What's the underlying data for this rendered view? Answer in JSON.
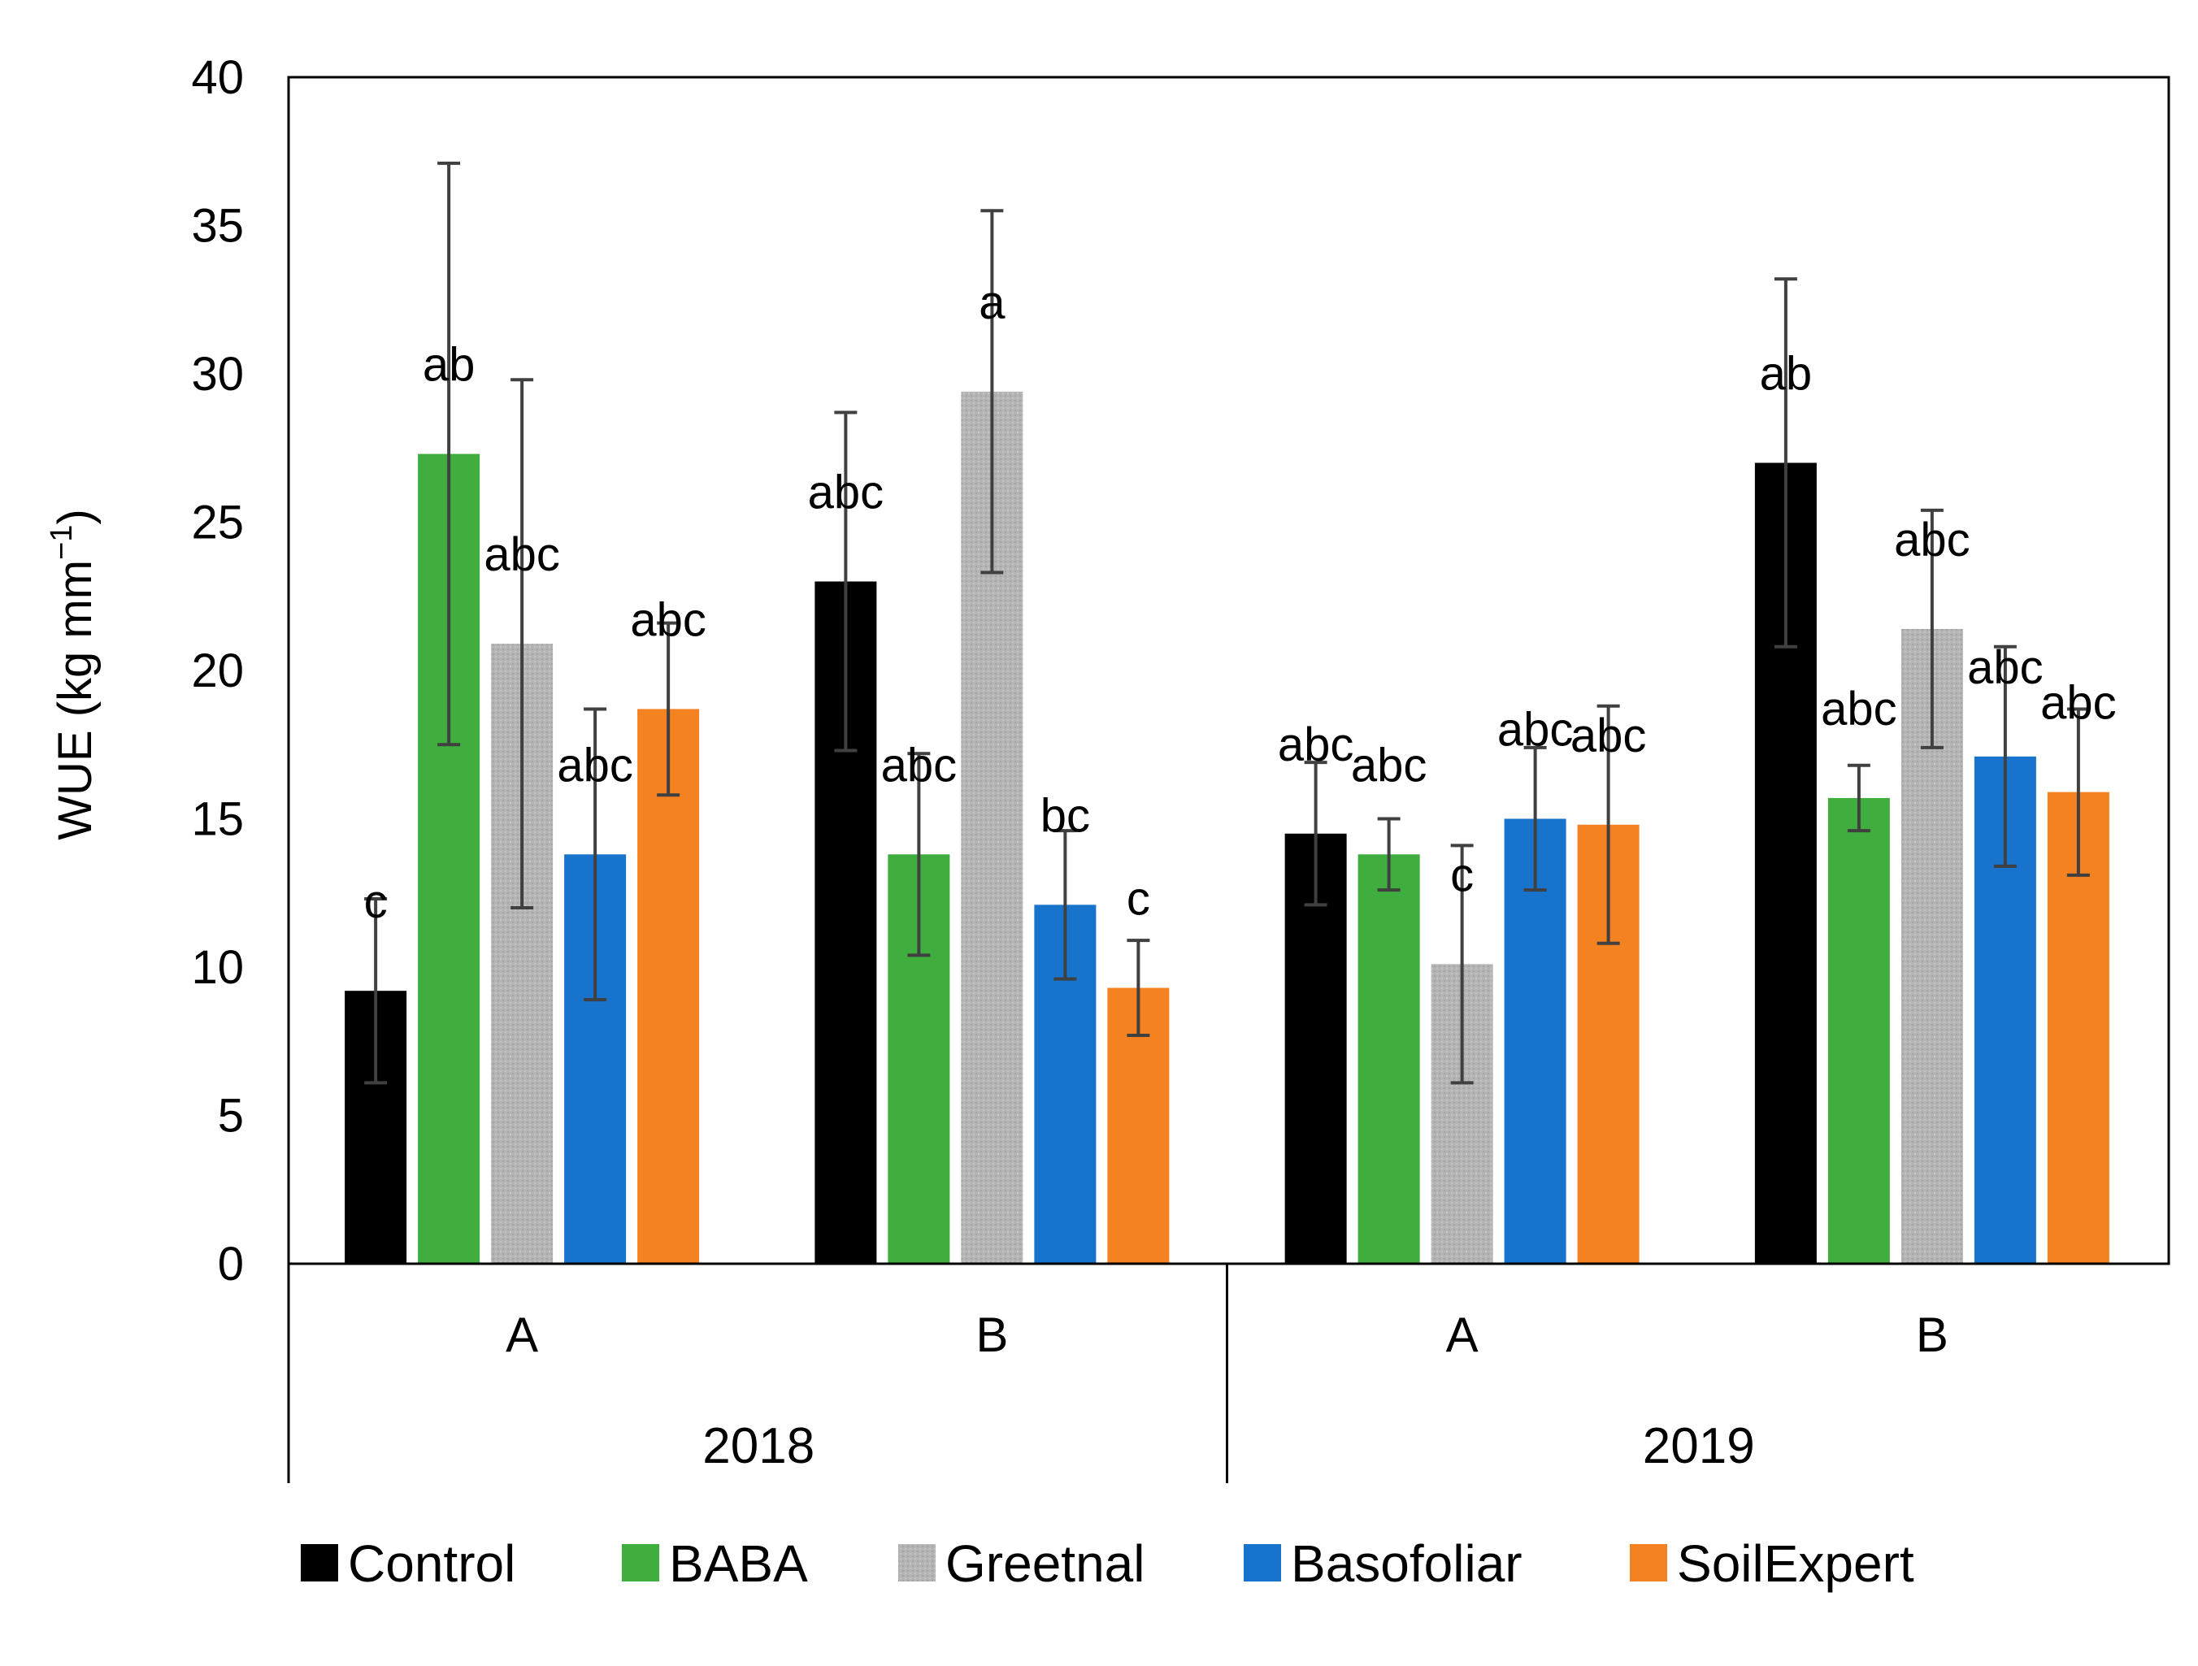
{
  "chart_data": {
    "type": "bar",
    "xlabel": "",
    "ylabel_main": "WUE (kg mm",
    "ylabel_sup": "−1",
    "ylabel_close": ")",
    "ylim": [
      0,
      40
    ],
    "yticks": [
      0,
      5,
      10,
      15,
      20,
      25,
      30,
      35,
      40
    ],
    "groups": [
      {
        "label": "2018",
        "categories": [
          "A",
          "B"
        ]
      },
      {
        "label": "2019",
        "categories": [
          "A",
          "B"
        ]
      }
    ],
    "categories": [
      "A",
      "B",
      "A",
      "B"
    ],
    "series": [
      {
        "name": "Control",
        "color": "#000000",
        "values": [
          9.2,
          23.0,
          14.5,
          27.0
        ],
        "errors": [
          3.1,
          5.7,
          2.4,
          6.2
        ],
        "letters": [
          "c",
          "abc",
          "abc",
          "ab"
        ]
      },
      {
        "name": "BABA",
        "color": "#3fae3f",
        "values": [
          27.3,
          13.8,
          13.8,
          15.7
        ],
        "errors": [
          9.8,
          3.4,
          1.2,
          1.1
        ],
        "letters": [
          "ab",
          "abc",
          "abc",
          "abc"
        ]
      },
      {
        "name": "Greetnal",
        "color": "#b3b3b3",
        "values": [
          20.9,
          29.4,
          10.1,
          21.4
        ],
        "errors": [
          8.9,
          6.1,
          4.0,
          4.0
        ],
        "letters": [
          "abc",
          "a",
          "c",
          "abc"
        ]
      },
      {
        "name": "Basofoliar",
        "color": "#1873cc",
        "values": [
          13.8,
          12.1,
          15.0,
          17.1
        ],
        "errors": [
          4.9,
          2.5,
          2.4,
          3.7
        ],
        "letters": [
          "abc",
          "bc",
          "abc",
          "abc"
        ]
      },
      {
        "name": "SoilExpert",
        "color": "#f58220",
        "values": [
          18.7,
          9.3,
          14.8,
          15.9
        ],
        "errors": [
          2.9,
          1.6,
          4.0,
          2.8
        ],
        "letters": [
          "abc",
          "c",
          "abc",
          "abc"
        ]
      }
    ],
    "legend_position": "bottom",
    "grid": false
  }
}
